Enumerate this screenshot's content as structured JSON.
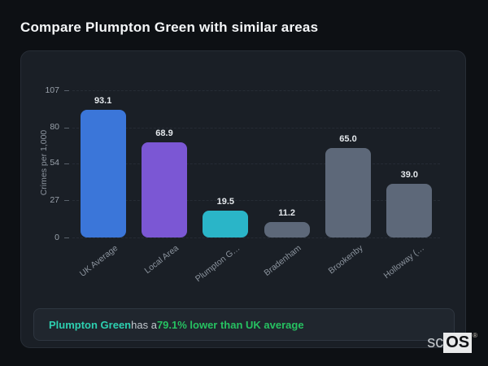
{
  "page": {
    "title": "Compare Plumpton Green with similar areas"
  },
  "chart_data": {
    "type": "bar",
    "title": "",
    "xlabel": "",
    "ylabel": "Crimes per 1,000",
    "categories": [
      "UK Average",
      "Local Area",
      "Plumpton G…",
      "Bradenham",
      "Brookenby",
      "Holloway (…"
    ],
    "values": [
      93.1,
      68.9,
      19.5,
      11.2,
      65.0,
      39.0
    ],
    "value_labels": [
      "93.1",
      "68.9",
      "19.5",
      "11.2",
      "65.0",
      "39.0"
    ],
    "bar_colors": [
      "#3b76d9",
      "#7b57d4",
      "#2ab5c8",
      "#5d6879",
      "#5d6879",
      "#5d6879"
    ],
    "yticks": [
      0,
      27,
      54,
      80,
      107
    ],
    "ylim": [
      0,
      107
    ],
    "grid": "dashed horizontal",
    "legend": "none",
    "x_label_rotation_deg": -38
  },
  "note": {
    "area_name": "Plumpton Green",
    "middle_text": " has a ",
    "highlight_text": "79.1% lower than UK average",
    "area_color": "#2dd0b0",
    "highlight_color": "#26c161"
  },
  "logo": {
    "prefix": "sc",
    "suffix": "OS",
    "registered_mark": "®"
  },
  "colors": {
    "page_background": "#0d1014",
    "card_background": "#1a1f26",
    "card_border": "#272d36",
    "note_background": "#20262e",
    "gridline": "#262c35",
    "axis_text": "#8b939d",
    "value_label_text": "#e4e8ec",
    "title_text": "#f4f6f8"
  }
}
